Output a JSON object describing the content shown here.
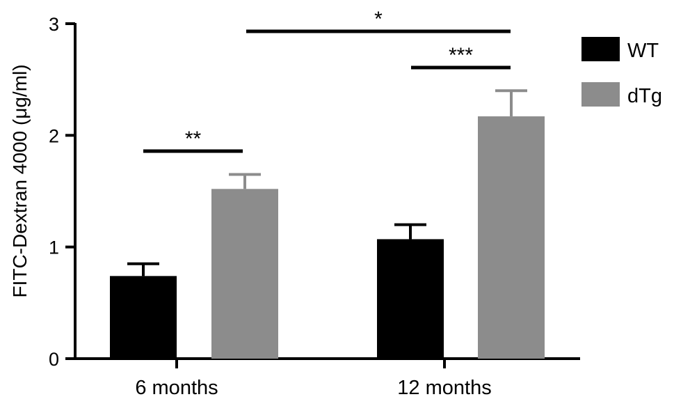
{
  "chart_data": {
    "type": "bar",
    "categories": [
      "6 months",
      "12 months"
    ],
    "series": [
      {
        "name": "WT",
        "color": "#000000",
        "values": [
          0.74,
          1.07
        ],
        "errors": [
          0.11,
          0.13
        ]
      },
      {
        "name": "dTg",
        "color": "#8c8c8c",
        "values": [
          1.52,
          2.17
        ],
        "errors": [
          0.13,
          0.23
        ]
      }
    ],
    "ylabel": "FITC-Dextran 4000 (μg/ml)",
    "xlabel": "",
    "ylim": [
      0,
      3
    ],
    "yticks": [
      0,
      1,
      2,
      3
    ],
    "legend_position": "top-right",
    "significance": [
      {
        "label": "**",
        "from": {
          "category": 0,
          "series": 0
        },
        "to": {
          "category": 0,
          "series": 1
        }
      },
      {
        "label": "***",
        "from": {
          "category": 1,
          "series": 0
        },
        "to": {
          "category": 1,
          "series": 1
        }
      },
      {
        "label": "*",
        "from": {
          "category": 0,
          "series": 1
        },
        "to": {
          "category": 1,
          "series": 1
        }
      }
    ]
  }
}
